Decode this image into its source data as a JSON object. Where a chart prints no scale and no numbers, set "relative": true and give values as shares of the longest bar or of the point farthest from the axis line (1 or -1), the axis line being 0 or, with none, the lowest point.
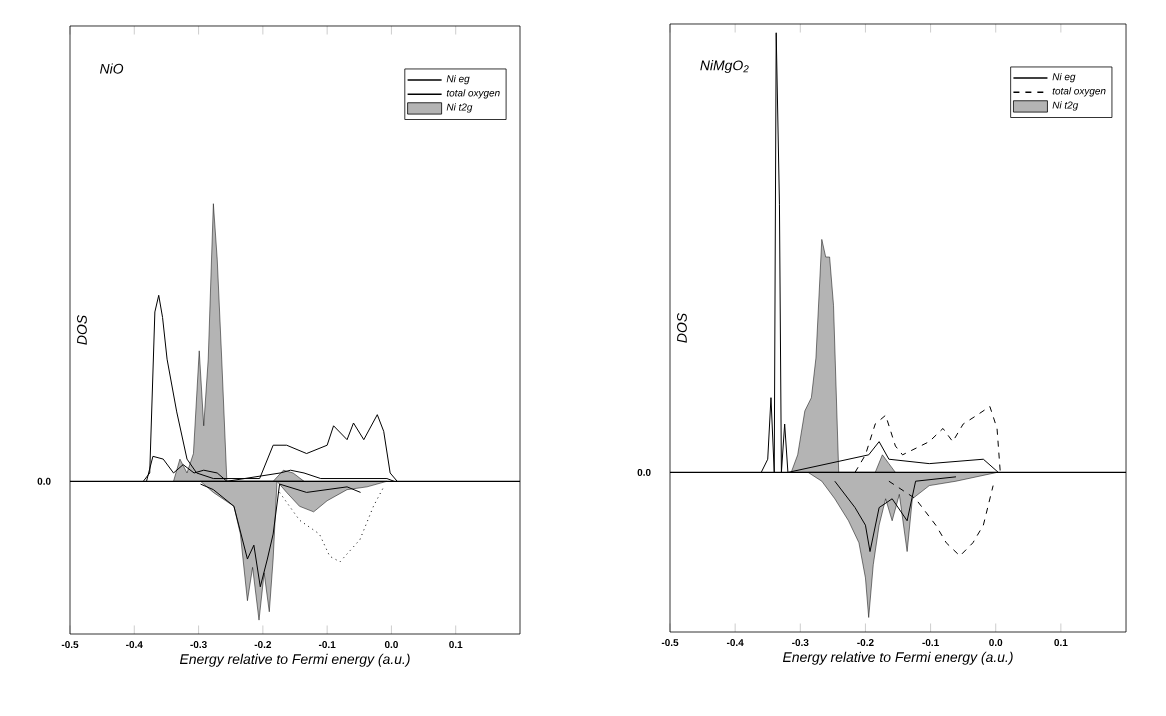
{
  "chart_data": [
    {
      "type": "line",
      "title": "NiO",
      "xlabel": "Energy relative to Fermi energy (a.u.)",
      "ylabel": "DOS",
      "relative": true,
      "legend": "top right",
      "xlim": [
        -0.5,
        0.2
      ],
      "xticks": [
        -0.5,
        -0.4,
        -0.3,
        -0.2,
        -0.1,
        {
          "value": 0,
          "label": "0.0"
        },
        0.1
      ],
      "ref_lines": [
        {
          "axis": "y",
          "value": 0,
          "label": "0.0"
        }
      ],
      "series": [
        {
          "name": "Ni eg",
          "color": "#000000",
          "line_style": "solid",
          "x": [
            -0.381,
            -0.371,
            -0.355,
            -0.339,
            -0.324,
            -0.307,
            -0.292,
            -0.271,
            -0.256,
            -0.173,
            -0.157,
            -0.136,
            -0.11,
            -0.048,
            -0.007,
            0.004
          ],
          "values": [
            0,
            0.09,
            0.08,
            0.03,
            0.06,
            0.03,
            0.04,
            0.03,
            0,
            0.03,
            0.04,
            0.03,
            0.01,
            0.01,
            0.01,
            0
          ]
        },
        {
          "color": "#000000",
          "line_style": "solid",
          "x": [
            -0.297,
            -0.277,
            -0.245,
            -0.224,
            -0.214,
            -0.204,
            -0.193,
            -0.184,
            -0.174,
            -0.132,
            -0.069,
            -0.048
          ],
          "values": [
            -0.01,
            -0.03,
            -0.09,
            -0.28,
            -0.23,
            -0.38,
            -0.28,
            -0.19,
            -0.01,
            -0.04,
            -0.02,
            -0.04
          ]
        },
        {
          "name": "total oxygen",
          "color": "#000000",
          "line_style": "solid",
          "x": [
            -0.386,
            -0.376,
            -0.368,
            -0.362,
            -0.356,
            -0.349,
            -0.334,
            -0.318,
            -0.303,
            -0.277,
            -0.205,
            -0.184,
            -0.163,
            -0.132,
            -0.1,
            -0.09,
            -0.069,
            -0.059,
            -0.043,
            -0.022,
            -0.012,
            -0.002,
            0.009
          ],
          "values": [
            0,
            0.03,
            0.61,
            0.67,
            0.59,
            0.44,
            0.25,
            0.08,
            0.03,
            0.01,
            0.01,
            0.13,
            0.13,
            0.1,
            0.13,
            0.2,
            0.15,
            0.21,
            0.15,
            0.24,
            0.18,
            0.03,
            0
          ]
        },
        {
          "color": "#000000",
          "line_style": "dotted",
          "x": [
            -0.174,
            -0.143,
            -0.112,
            -0.096,
            -0.08,
            -0.049,
            -0.028,
            -0.012
          ],
          "values": [
            -0.04,
            -0.14,
            -0.19,
            -0.27,
            -0.29,
            -0.21,
            -0.09,
            -0.02
          ]
        },
        {
          "name": "Ni t2g",
          "type": "area",
          "color": "#b4b4b4",
          "x": [
            -0.339,
            -0.329,
            -0.318,
            -0.308,
            -0.299,
            -0.292,
            -0.285,
            -0.277,
            -0.271,
            -0.264,
            -0.256,
            -0.184,
            -0.168,
            -0.153,
            -0.136
          ],
          "values": [
            0,
            0.08,
            0.03,
            0.1,
            0.47,
            0.2,
            0.44,
            1.0,
            0.8,
            0.44,
            0,
            0,
            0.04,
            0.03,
            0
          ]
        },
        {
          "type": "area",
          "color": "#b4b4b4",
          "x": [
            -0.297,
            -0.277,
            -0.245,
            -0.235,
            -0.224,
            -0.216,
            -0.206,
            -0.198,
            -0.19,
            -0.184,
            -0.178,
            -0.163,
            -0.143,
            -0.121,
            -0.1,
            -0.069,
            -0.038,
            -0.007
          ],
          "values": [
            0,
            -0.04,
            -0.09,
            -0.19,
            -0.43,
            -0.31,
            -0.5,
            -0.33,
            -0.47,
            -0.28,
            0,
            -0.04,
            -0.09,
            -0.11,
            -0.07,
            -0.03,
            -0.02,
            0
          ]
        }
      ]
    },
    {
      "type": "line",
      "title": "NiMgO$_{2}$",
      "xlabel": "Energy relative to Fermi energy (a.u.)",
      "ylabel": "DOS",
      "relative": true,
      "legend": "top right",
      "xlim": [
        -0.5,
        0.2
      ],
      "xticks": [
        -0.5,
        -0.4,
        -0.3,
        -0.2,
        -0.1,
        {
          "value": 0,
          "label": "0.0"
        },
        0.1
      ],
      "ref_lines": [
        {
          "axis": "y",
          "value": 0,
          "label": "0.0"
        }
      ],
      "series": [
        {
          "name": "Ni eg",
          "color": "#000000",
          "line_style": "solid",
          "x": [
            -0.36,
            -0.35,
            -0.345,
            -0.34,
            -0.337,
            -0.332,
            -0.329,
            -0.324,
            -0.319,
            -0.195,
            -0.179,
            -0.164,
            -0.102,
            -0.019,
            0.004
          ],
          "values": [
            0,
            0.03,
            0.17,
            0,
            1.0,
            0.61,
            0,
            0.11,
            0,
            0.04,
            0.07,
            0.03,
            0.02,
            0.03,
            0
          ]
        },
        {
          "color": "#000000",
          "line_style": "solid",
          "x": [
            -0.247,
            -0.216,
            -0.2,
            -0.193,
            -0.179,
            -0.159,
            -0.136,
            -0.123,
            -0.061
          ],
          "values": [
            -0.02,
            -0.08,
            -0.12,
            -0.18,
            -0.08,
            -0.06,
            -0.11,
            -0.02,
            -0.01
          ]
        },
        {
          "name": "total oxygen",
          "color": "#000000",
          "line_style": "dashed",
          "x": [
            -0.216,
            -0.2,
            -0.185,
            -0.169,
            -0.154,
            -0.143,
            -0.102,
            -0.081,
            -0.066,
            -0.05,
            -0.029,
            -0.009,
            0.002,
            0.007
          ],
          "values": [
            0,
            0.04,
            0.11,
            0.13,
            0.06,
            0.04,
            0.07,
            0.1,
            0.07,
            0.11,
            0.13,
            0.15,
            0.1,
            0
          ]
        },
        {
          "color": "#000000",
          "line_style": "dashed",
          "x": [
            -0.164,
            -0.123,
            -0.092,
            -0.076,
            -0.055,
            -0.035,
            -0.019,
            -0.004
          ],
          "values": [
            -0.02,
            -0.06,
            -0.12,
            -0.16,
            -0.19,
            -0.16,
            -0.12,
            -0.03
          ]
        },
        {
          "name": "Ni t2g",
          "type": "area",
          "color": "#b4b4b4",
          "x": [
            -0.314,
            -0.304,
            -0.293,
            -0.283,
            -0.276,
            -0.267,
            -0.261,
            -0.255,
            -0.249,
            -0.241,
            -0.185,
            -0.174,
            -0.164,
            -0.154
          ],
          "values": [
            0,
            0.04,
            0.14,
            0.17,
            0.26,
            0.53,
            0.49,
            0.49,
            0.38,
            0,
            0,
            0.04,
            0.02,
            0
          ]
        },
        {
          "type": "area",
          "color": "#b4b4b4",
          "x": [
            -0.288,
            -0.267,
            -0.247,
            -0.226,
            -0.21,
            -0.2,
            -0.195,
            -0.188,
            -0.179,
            -0.169,
            -0.159,
            -0.148,
            -0.136,
            -0.128,
            -0.102,
            -0.061,
            0.002
          ],
          "values": [
            0,
            -0.02,
            -0.06,
            -0.11,
            -0.16,
            -0.24,
            -0.33,
            -0.21,
            -0.12,
            -0.06,
            -0.11,
            -0.05,
            -0.18,
            -0.06,
            -0.03,
            -0.02,
            0
          ]
        }
      ]
    }
  ]
}
